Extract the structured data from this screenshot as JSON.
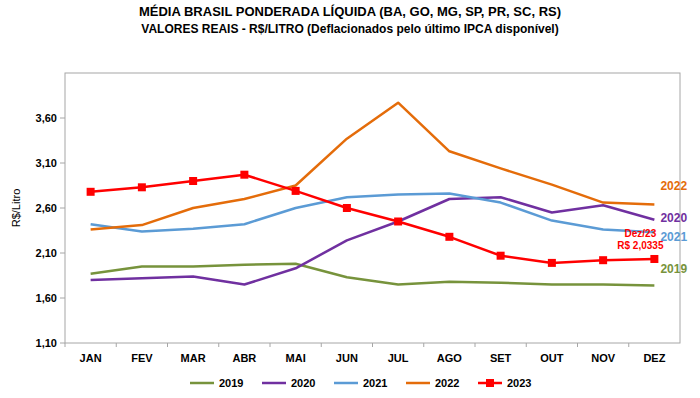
{
  "chart_data": {
    "type": "line",
    "title": "MÉDIA BRASIL PONDERADA LÍQUIDA (BA, GO, MG, SP, PR, SC, RS)",
    "subtitle": "VALORES REAIS - R$/LITRO (Deflacionados pelo último IPCA disponível)",
    "y_label": "R$/Litro",
    "categories": [
      "JAN",
      "FEV",
      "MAR",
      "ABR",
      "MAI",
      "JUN",
      "JUL",
      "AGO",
      "SET",
      "OUT",
      "NOV",
      "DEZ"
    ],
    "series": [
      {
        "name": "2019",
        "color": "#77933c",
        "values": [
          1.87,
          1.95,
          1.95,
          1.97,
          1.98,
          1.83,
          1.75,
          1.78,
          1.77,
          1.75,
          1.75,
          1.74
        ]
      },
      {
        "name": "2020",
        "color": "#7030a0",
        "values": [
          1.8,
          1.82,
          1.84,
          1.75,
          1.93,
          2.24,
          2.45,
          2.7,
          2.72,
          2.55,
          2.63,
          2.47
        ]
      },
      {
        "name": "2021",
        "color": "#5b9bd5",
        "values": [
          2.42,
          2.34,
          2.37,
          2.42,
          2.6,
          2.72,
          2.75,
          2.76,
          2.66,
          2.46,
          2.36,
          2.33
        ]
      },
      {
        "name": "2022",
        "color": "#e46c0a",
        "values": [
          2.36,
          2.41,
          2.6,
          2.7,
          2.85,
          3.37,
          3.77,
          3.23,
          3.04,
          2.86,
          2.66,
          2.64
        ]
      },
      {
        "name": "2023",
        "color": "#ff0000",
        "marker": "square",
        "values": [
          2.78,
          2.83,
          2.9,
          2.97,
          2.79,
          2.6,
          2.45,
          2.28,
          2.07,
          1.99,
          2.02,
          2.0335
        ]
      }
    ],
    "annotations": [
      "Dez/23",
      "R$ 2,0335"
    ],
    "ylim": [
      1.1,
      4.1
    ],
    "yticks": [
      {
        "value": 1.1,
        "label": "1,10"
      },
      {
        "value": 1.6,
        "label": "1,60"
      },
      {
        "value": 2.1,
        "label": "2,10"
      },
      {
        "value": 2.6,
        "label": "2,60"
      },
      {
        "value": 3.1,
        "label": "3,10"
      },
      {
        "value": 3.6,
        "label": "3,60"
      }
    ],
    "grid": false,
    "legend": "bottom"
  }
}
